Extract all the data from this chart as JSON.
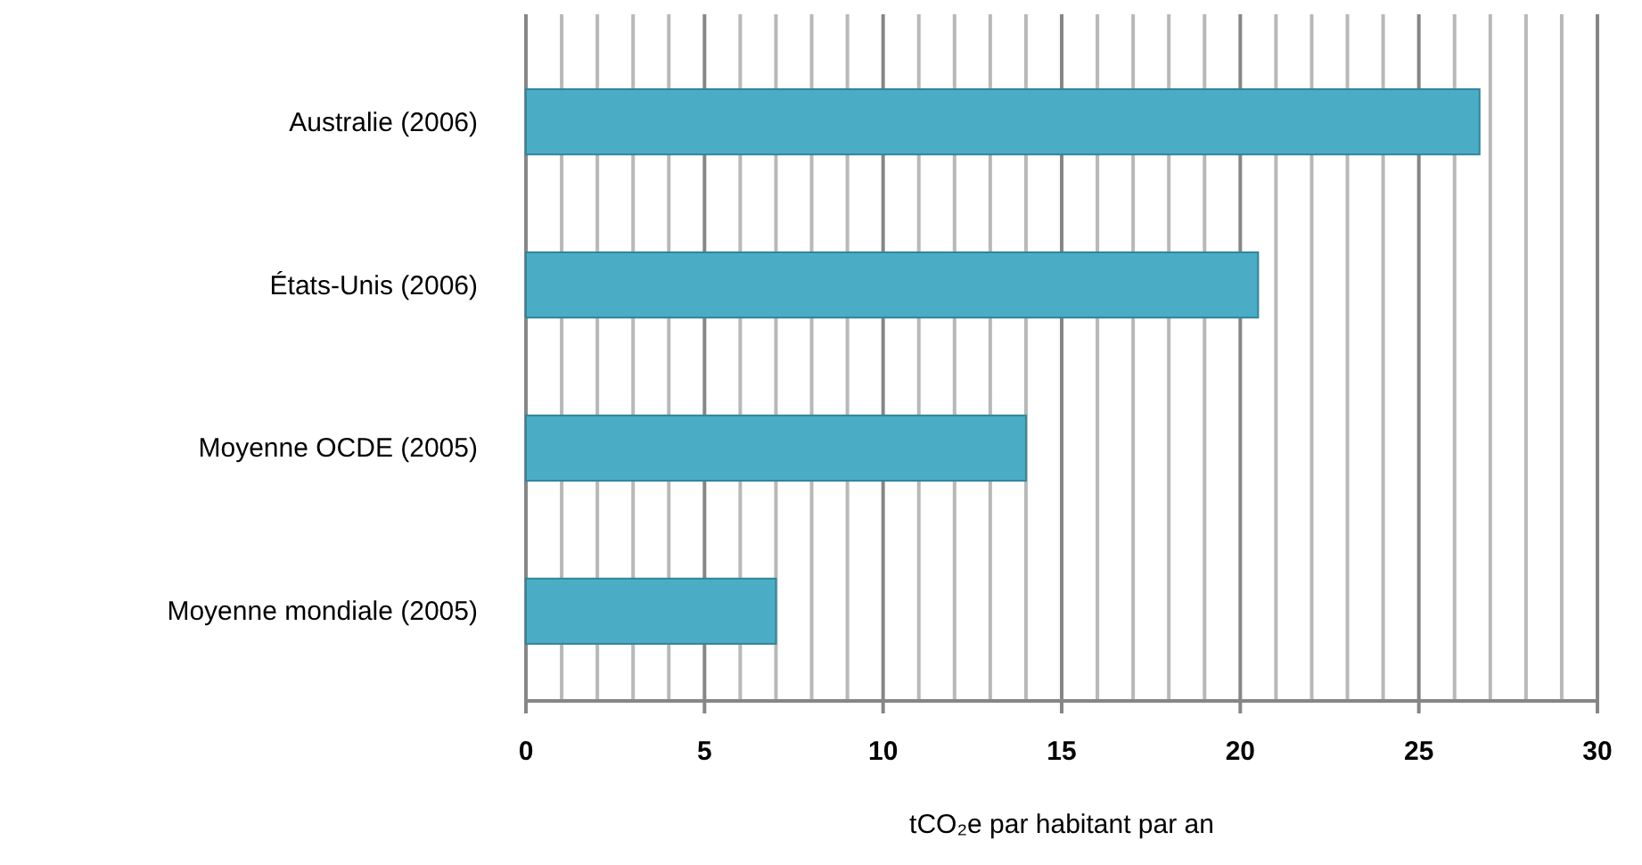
{
  "chart_data": {
    "type": "bar",
    "orientation": "horizontal",
    "xlabel": "tCO₂e par habitant par an",
    "categories": [
      "Australie (2006)",
      "États-Unis (2006)",
      "Moyenne OCDE (2005)",
      "Moyenne mondiale (2005)"
    ],
    "values": [
      26.7,
      20.5,
      14.0,
      7.0
    ],
    "color": "#4bacc6",
    "xlim": [
      0,
      30
    ],
    "xticks": [
      0,
      {
        "value": 1,
        "label": null
      },
      {
        "value": 2,
        "label": null
      },
      {
        "value": 3,
        "label": null
      },
      {
        "value": 4,
        "label": null
      },
      5,
      {
        "value": 6,
        "label": null
      },
      {
        "value": 7,
        "label": null
      },
      {
        "value": 8,
        "label": null
      },
      {
        "value": 9,
        "label": null
      },
      10,
      {
        "value": 11,
        "label": null
      },
      {
        "value": 12,
        "label": null
      },
      {
        "value": 13,
        "label": null
      },
      {
        "value": 14,
        "label": null
      },
      15,
      {
        "value": 16,
        "label": null
      },
      {
        "value": 17,
        "label": null
      },
      {
        "value": 18,
        "label": null
      },
      {
        "value": 19,
        "label": null
      },
      20,
      {
        "value": 21,
        "label": null
      },
      {
        "value": 22,
        "label": null
      },
      {
        "value": 23,
        "label": null
      },
      {
        "value": 24,
        "label": null
      },
      25,
      {
        "value": 26,
        "label": null
      },
      {
        "value": 27,
        "label": null
      },
      {
        "value": 28,
        "label": null
      },
      {
        "value": 29,
        "label": null
      },
      30
    ],
    "grid": "x"
  }
}
